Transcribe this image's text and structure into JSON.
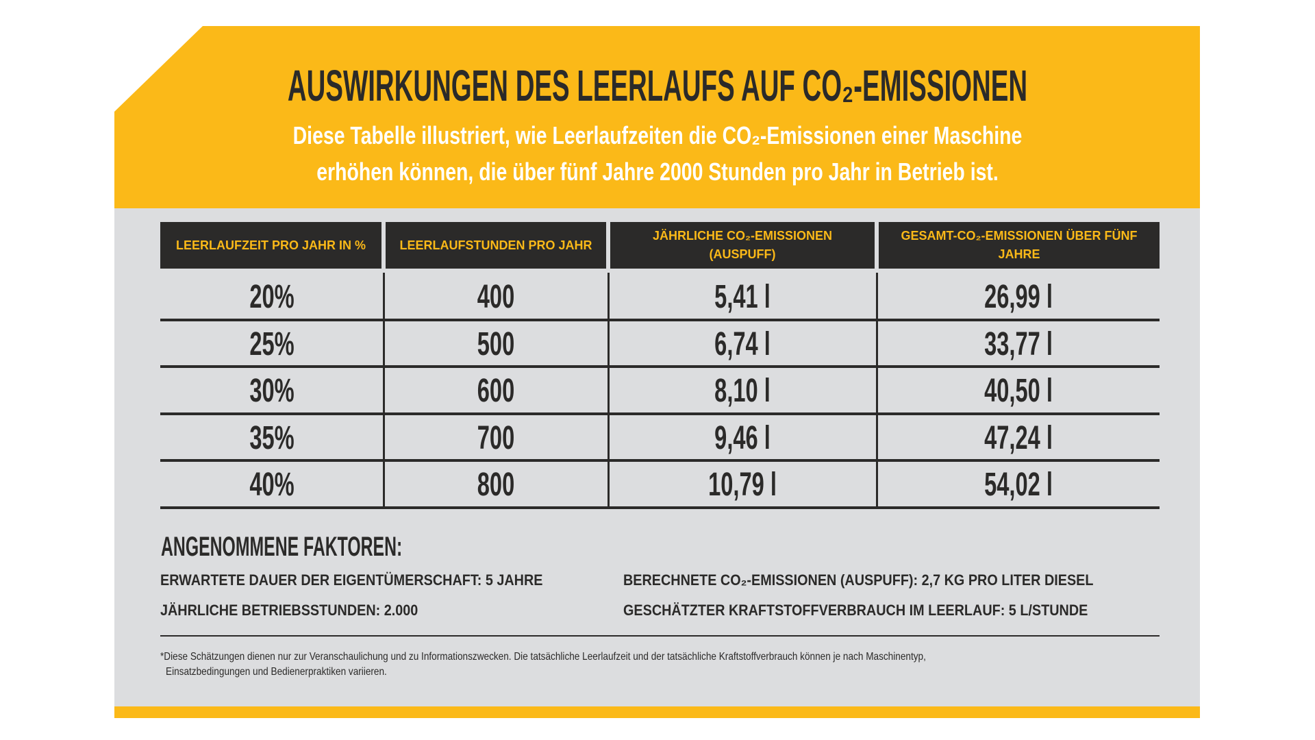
{
  "header": {
    "title": "AUSWIRKUNGEN DES LEERLAUFS AUF CO₂-EMISSIONEN",
    "subtitle": [
      "Diese Tabelle illustriert, wie Leerlaufzeiten die CO₂-Emissionen einer Maschine",
      "erhöhen können, die über fünf Jahre 2000 Stunden pro Jahr in Betrieb ist."
    ]
  },
  "table": {
    "columns": [
      "LEERLAUFZEIT PRO JAHR IN %",
      "LEERLAUFSTUNDEN PRO JAHR",
      "JÄHRLICHE CO₂-EMISSIONEN (AUSPUFF)",
      "GESAMT-CO₂-EMISSIONEN ÜBER FÜNF JAHRE"
    ],
    "rows": [
      [
        "20%",
        "400",
        "5,41 l",
        "26,99 l"
      ],
      [
        "25%",
        "500",
        "6,74 l",
        "33,77 l"
      ],
      [
        "30%",
        "600",
        "8,10 l",
        "40,50 l"
      ],
      [
        "35%",
        "700",
        "9,46 l",
        "47,24 l"
      ],
      [
        "40%",
        "800",
        "10,79 l",
        "54,02 l"
      ]
    ]
  },
  "factors": {
    "title": "ANGENOMMENE FAKTOREN:",
    "items": [
      "ERWARTETE DAUER DER EIGENTÜMERSCHAFT: 5 JAHRE",
      "BERECHNETE CO₂-EMISSIONEN (AUSPUFF): 2,7 KG PRO LITER DIESEL",
      "JÄHRLICHE BETRIEBSSTUNDEN: 2.000",
      "GESCHÄTZTER KRAFTSTOFFVERBRAUCH IM LEERLAUF: 5 L/STUNDE"
    ]
  },
  "footnote": [
    "*Diese Schätzungen dienen nur zur Veranschaulichung und zu Informationszwecken. Die tatsächliche Leerlaufzeit und der tatsächliche Kraftstoffverbrauch können je nach Maschinentyp,",
    "Einsatzbedingungen und Bedienerpraktiken variieren."
  ]
}
